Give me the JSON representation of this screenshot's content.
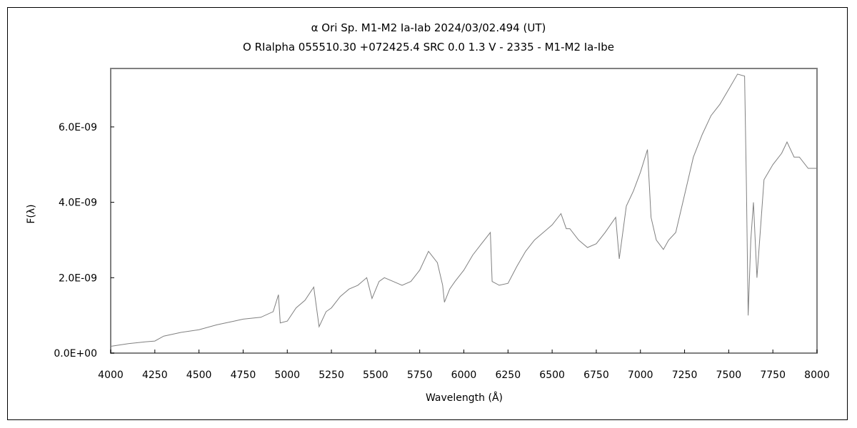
{
  "chart_data": {
    "type": "line",
    "title": "α Ori    Sp. M1-M2 Ia-Iab   2024/03/02.494 (UT)",
    "subtitle": "O RIalpha 055510.30 +072425.4 SRC 0.0 1.3 V - 2335 - M1-M2 Ia-Ibe",
    "xlabel": "Wavelength (Å)",
    "ylabel": "F(λ)",
    "xlim": [
      4000,
      8000
    ],
    "ylim": [
      0,
      7.55e-09
    ],
    "grid": false,
    "line_color": "#808080",
    "x_ticks": [
      "4000",
      "4250",
      "4500",
      "4750",
      "5000",
      "5250",
      "5500",
      "5750",
      "6000",
      "6250",
      "6500",
      "6750",
      "7000",
      "7250",
      "7500",
      "7750",
      "8000"
    ],
    "y_ticks": [
      {
        "value": 0,
        "label": "0.0E+00"
      },
      {
        "value": 2e-09,
        "label": "2.0E-09"
      },
      {
        "value": 4e-09,
        "label": "4.0E-09"
      },
      {
        "value": 6e-09,
        "label": "6.0E-09"
      }
    ],
    "series": [
      {
        "x": [
          4000,
          4100,
          4200,
          4250,
          4300,
          4400,
          4500,
          4600,
          4700,
          4750,
          4850,
          4920,
          4950,
          4960,
          5000,
          5050,
          5100,
          5150,
          5180,
          5220,
          5250,
          5300,
          5350,
          5400,
          5450,
          5480,
          5520,
          5550,
          5600,
          5650,
          5700,
          5750,
          5800,
          5850,
          5880,
          5890,
          5920,
          5950,
          6000,
          6050,
          6100,
          6150,
          6160,
          6200,
          6250,
          6300,
          6350,
          6400,
          6450,
          6500,
          6550,
          6580,
          6600,
          6650,
          6700,
          6750,
          6800,
          6860,
          6880,
          6920,
          6960,
          7000,
          7040,
          7060,
          7090,
          7130,
          7160,
          7200,
          7250,
          7300,
          7350,
          7400,
          7450,
          7500,
          7550,
          7590,
          7600,
          7610,
          7625,
          7640,
          7660,
          7700,
          7750,
          7800,
          7830,
          7870,
          7900,
          7950,
          8000
        ],
        "y": [
          1.8e-10,
          2.5e-10,
          3e-10,
          3.2e-10,
          4.5e-10,
          5.5e-10,
          6.2e-10,
          7.5e-10,
          8.5e-10,
          9e-10,
          9.5e-10,
          1.1e-09,
          1.55e-09,
          8e-10,
          8.5e-10,
          1.2e-09,
          1.4e-09,
          1.75e-09,
          7e-10,
          1.1e-09,
          1.2e-09,
          1.5e-09,
          1.7e-09,
          1.8e-09,
          2e-09,
          1.45e-09,
          1.9e-09,
          2e-09,
          1.9e-09,
          1.8e-09,
          1.9e-09,
          2.2e-09,
          2.7e-09,
          2.4e-09,
          1.8e-09,
          1.35e-09,
          1.7e-09,
          1.9e-09,
          2.2e-09,
          2.6e-09,
          2.9e-09,
          3.2e-09,
          1.9e-09,
          1.8e-09,
          1.85e-09,
          2.3e-09,
          2.7e-09,
          3e-09,
          3.2e-09,
          3.4e-09,
          3.7e-09,
          3.3e-09,
          3.3e-09,
          3e-09,
          2.8e-09,
          2.9e-09,
          3.2e-09,
          3.6e-09,
          2.5e-09,
          3.9e-09,
          4.3e-09,
          4.8e-09,
          5.4e-09,
          3.6e-09,
          3e-09,
          2.75e-09,
          3e-09,
          3.2e-09,
          4.2e-09,
          5.2e-09,
          5.8e-09,
          6.3e-09,
          6.6e-09,
          7e-09,
          7.4e-09,
          7.35e-09,
          4.5e-09,
          1e-09,
          3e-09,
          4e-09,
          2e-09,
          4.6e-09,
          5e-09,
          5.3e-09,
          5.6e-09,
          5.2e-09,
          5.2e-09,
          4.9e-09,
          4.9e-09
        ]
      }
    ]
  }
}
